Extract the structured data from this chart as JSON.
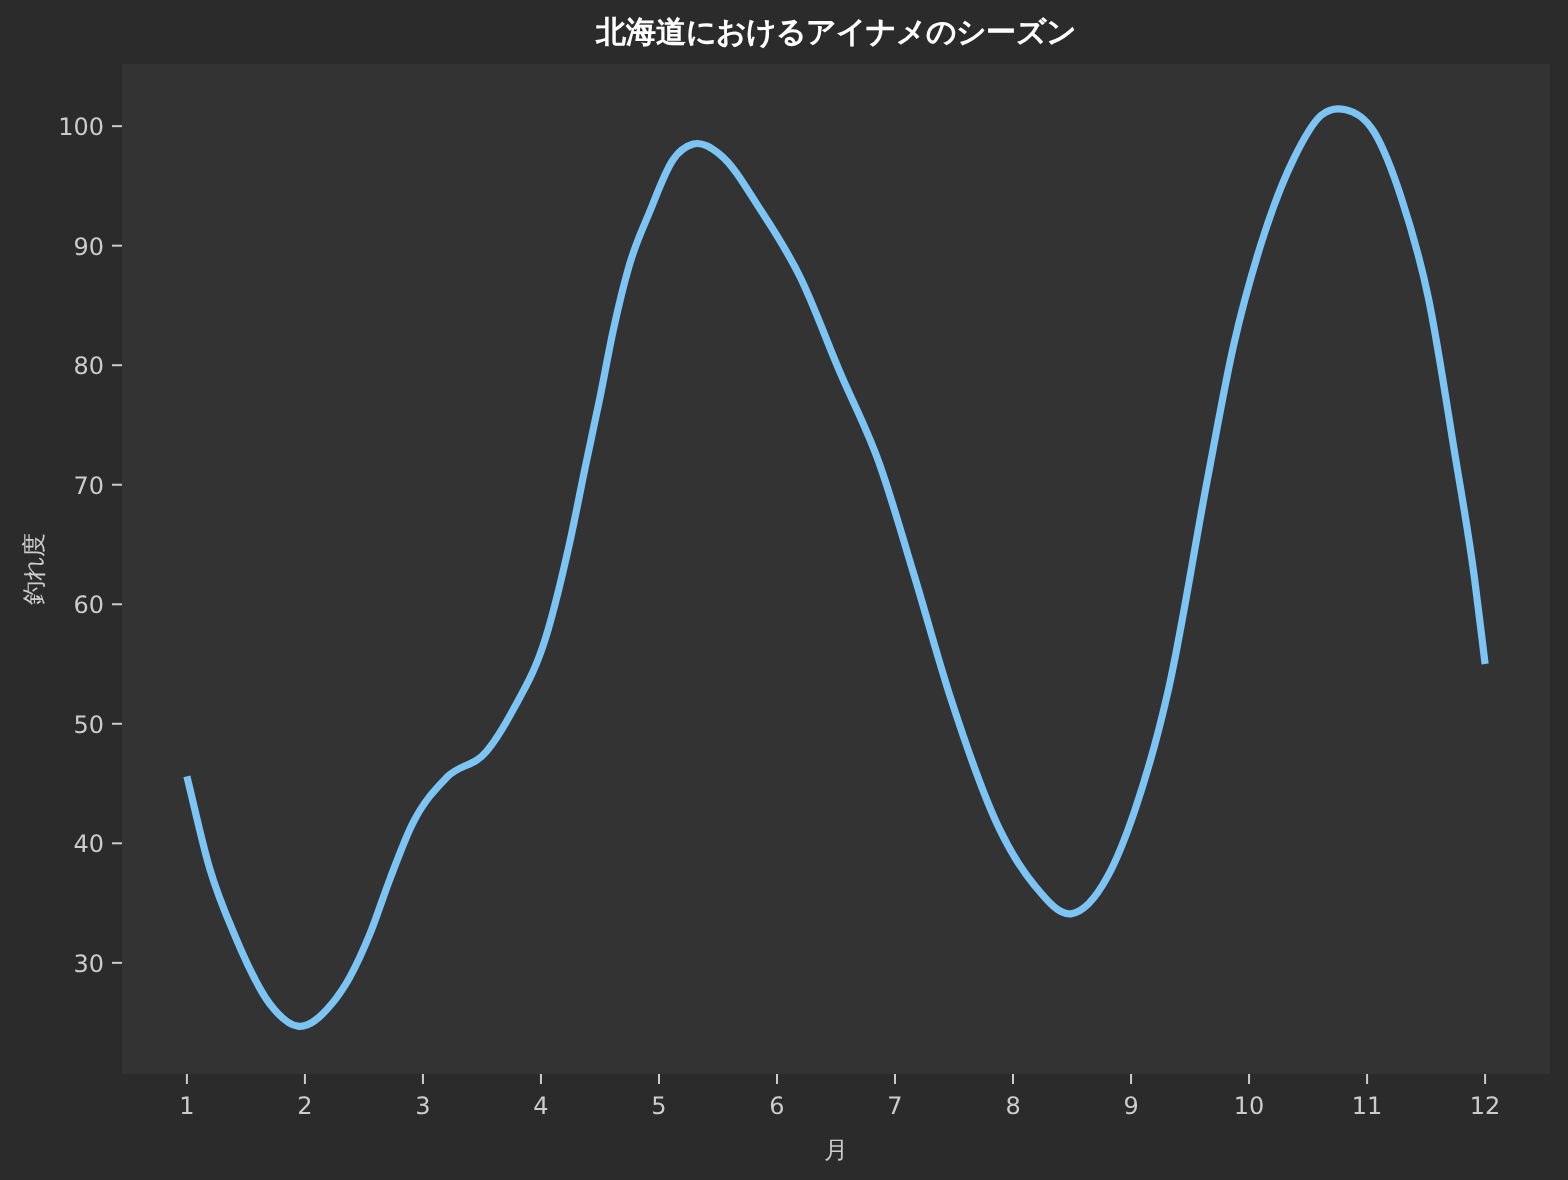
{
  "chart_data": {
    "type": "line",
    "title": "北海道におけるアイナメのシーズン",
    "xlabel": "月",
    "ylabel": "釣れ度",
    "x": [
      1.0,
      1.19,
      1.41,
      1.7,
      1.94,
      2.23,
      2.38,
      2.55,
      2.72,
      2.91,
      3.2,
      3.54,
      3.76,
      4.04,
      4.24,
      4.38,
      4.5,
      4.61,
      4.75,
      4.92,
      5.12,
      5.29,
      5.52,
      5.86,
      6.2,
      6.53,
      6.87,
      7.16,
      7.47,
      7.89,
      8.18,
      8.49,
      8.8,
      9.03,
      9.32,
      9.65,
      9.87,
      10.1,
      10.38,
      10.61,
      10.81,
      11.06,
      11.29,
      11.52,
      11.74,
      11.91,
      12.0
    ],
    "series": [
      {
        "color": "#7bc4f4",
        "values": [
          45.6,
          38.0,
          32.2,
          26.6,
          24.7,
          26.6,
          28.8,
          32.4,
          37.0,
          41.6,
          45.5,
          47.7,
          51.1,
          57.2,
          65.0,
          71.7,
          77.3,
          82.8,
          88.4,
          92.8,
          97.2,
          98.5,
          97.6,
          93.0,
          87.3,
          79.5,
          71.7,
          62.5,
          52.2,
          41.1,
          36.5,
          34.1,
          37.2,
          42.7,
          53.0,
          70.6,
          81.7,
          90.1,
          97.3,
          100.9,
          101.4,
          99.5,
          94.0,
          85.6,
          72.8,
          62.2,
          55.0
        ]
      }
    ],
    "xlim": [
      0.45,
      12.55
    ],
    "ylim": [
      20.7,
      105.2
    ],
    "xticks": [
      1,
      2,
      3,
      4,
      5,
      6,
      7,
      8,
      9,
      10,
      11,
      12
    ],
    "yticks": [
      30,
      40,
      50,
      60,
      70,
      80,
      90,
      100
    ],
    "line_style": "solid",
    "marker": "none"
  }
}
